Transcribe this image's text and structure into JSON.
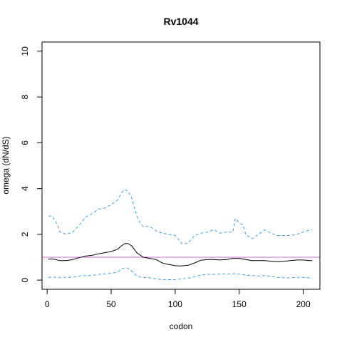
{
  "chart_data": {
    "type": "line",
    "title": "Rv1044",
    "xlabel": "codon",
    "ylabel": "omega (dN/dS)",
    "xlim": [
      -4,
      213
    ],
    "ylim": [
      -0.4,
      10.4
    ],
    "xticks": [
      0,
      50,
      100,
      150,
      200
    ],
    "yticks": [
      0,
      2,
      4,
      6,
      8,
      10
    ],
    "reference_line": {
      "y": 1,
      "color": "#cc66cc"
    },
    "series": [
      {
        "role": "estimate",
        "color": "#000000",
        "style": "solid",
        "x": [
          1,
          5,
          10,
          15,
          20,
          25,
          30,
          35,
          40,
          45,
          50,
          55,
          58,
          61,
          63,
          66,
          70,
          75,
          80,
          85,
          90,
          95,
          100,
          105,
          110,
          115,
          120,
          125,
          130,
          135,
          140,
          145,
          150,
          155,
          160,
          165,
          170,
          175,
          180,
          185,
          190,
          195,
          200,
          205,
          207
        ],
        "y": [
          0.92,
          0.92,
          0.85,
          0.85,
          0.9,
          0.98,
          1.05,
          1.08,
          1.15,
          1.2,
          1.25,
          1.35,
          1.5,
          1.6,
          1.6,
          1.5,
          1.2,
          1.0,
          0.95,
          0.9,
          0.75,
          0.68,
          0.63,
          0.62,
          0.65,
          0.75,
          0.87,
          0.9,
          0.9,
          0.88,
          0.9,
          0.95,
          0.95,
          0.9,
          0.85,
          0.85,
          0.85,
          0.82,
          0.8,
          0.82,
          0.85,
          0.88,
          0.88,
          0.85,
          0.85
        ]
      },
      {
        "role": "upper bound",
        "color": "#3aa0dc",
        "style": "dashed",
        "x": [
          1,
          4,
          6,
          8,
          10,
          15,
          20,
          25,
          30,
          35,
          40,
          45,
          50,
          55,
          58,
          60,
          63,
          66,
          70,
          73,
          75,
          80,
          85,
          90,
          95,
          100,
          105,
          110,
          115,
          120,
          125,
          130,
          135,
          140,
          145,
          147,
          150,
          153,
          155,
          160,
          165,
          170,
          175,
          180,
          185,
          190,
          195,
          200,
          205,
          207
        ],
        "y": [
          2.8,
          2.8,
          2.6,
          2.4,
          2.1,
          2.0,
          2.1,
          2.4,
          2.75,
          2.9,
          3.1,
          3.15,
          3.3,
          3.5,
          3.8,
          3.95,
          3.9,
          3.6,
          2.8,
          2.45,
          2.35,
          2.35,
          2.15,
          2.05,
          2.0,
          1.95,
          1.6,
          1.6,
          1.95,
          2.05,
          2.1,
          2.2,
          2.05,
          2.1,
          2.1,
          2.7,
          2.5,
          2.4,
          2.0,
          1.8,
          2.0,
          2.2,
          2.05,
          1.95,
          1.95,
          1.95,
          2.0,
          2.1,
          2.2,
          2.2
        ]
      },
      {
        "role": "lower bound",
        "color": "#3aa0dc",
        "style": "dashed",
        "x": [
          1,
          5,
          10,
          15,
          20,
          25,
          30,
          35,
          40,
          45,
          50,
          55,
          58,
          61,
          63,
          66,
          70,
          75,
          80,
          85,
          90,
          95,
          100,
          105,
          110,
          115,
          120,
          125,
          130,
          135,
          140,
          145,
          150,
          155,
          160,
          165,
          170,
          175,
          180,
          185,
          190,
          195,
          200,
          205,
          207
        ],
        "y": [
          0.12,
          0.13,
          0.12,
          0.12,
          0.13,
          0.18,
          0.2,
          0.2,
          0.25,
          0.28,
          0.3,
          0.35,
          0.48,
          0.55,
          0.52,
          0.4,
          0.18,
          0.12,
          0.1,
          0.05,
          0.02,
          0.02,
          0.02,
          0.05,
          0.08,
          0.15,
          0.22,
          0.25,
          0.25,
          0.27,
          0.27,
          0.28,
          0.27,
          0.22,
          0.2,
          0.18,
          0.2,
          0.15,
          0.12,
          0.1,
          0.1,
          0.12,
          0.12,
          0.1,
          0.08
        ]
      }
    ]
  }
}
